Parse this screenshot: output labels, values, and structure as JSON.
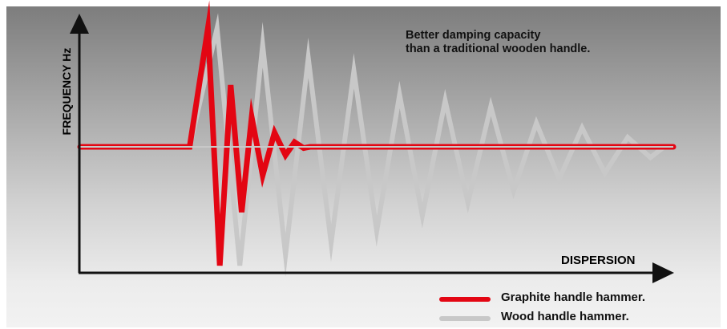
{
  "chart_data": {
    "type": "line",
    "annotation": [
      "Better damping capacity",
      "than a traditional wooden handle."
    ],
    "ylabel": "FREQUENCY Hz",
    "xlabel": "DISPERSION",
    "ylim": [
      -1.05,
      1.05
    ],
    "xlim": [
      0,
      650
    ],
    "grid": false,
    "legend_position": "bottom-right",
    "series": [
      {
        "name": "Graphite handle hammer.",
        "color": "#e30613",
        "points": [
          [
            0,
            0
          ],
          [
            120,
            0
          ],
          [
            140,
            1.0
          ],
          [
            153,
            -1.0
          ],
          [
            165,
            0.52
          ],
          [
            177,
            -0.55
          ],
          [
            188,
            0.25
          ],
          [
            200,
            -0.24
          ],
          [
            213,
            0.12
          ],
          [
            225,
            -0.07
          ],
          [
            235,
            0.04
          ],
          [
            245,
            -0.01
          ],
          [
            252,
            0
          ],
          [
            650,
            0
          ]
        ]
      },
      {
        "name": "Wood handle hammer.",
        "color": "#c8c8c8",
        "points": [
          [
            0,
            0
          ],
          [
            120,
            0
          ],
          [
            150,
            1.0
          ],
          [
            175,
            -1.0
          ],
          [
            200,
            0.86
          ],
          [
            225,
            -0.91
          ],
          [
            250,
            0.75
          ],
          [
            275,
            -0.81
          ],
          [
            300,
            0.64
          ],
          [
            325,
            -0.71
          ],
          [
            350,
            0.44
          ],
          [
            375,
            -0.58
          ],
          [
            400,
            0.39
          ],
          [
            425,
            -0.47
          ],
          [
            450,
            0.34
          ],
          [
            475,
            -0.37
          ],
          [
            500,
            0.2
          ],
          [
            525,
            -0.27
          ],
          [
            550,
            0.16
          ],
          [
            575,
            -0.22
          ],
          [
            600,
            0.08
          ],
          [
            625,
            -0.09
          ],
          [
            640,
            0
          ],
          [
            650,
            0
          ]
        ]
      }
    ]
  },
  "colors": {
    "graphite": "#e30613",
    "wood": "#c8c8c8",
    "axis": "#111111"
  }
}
